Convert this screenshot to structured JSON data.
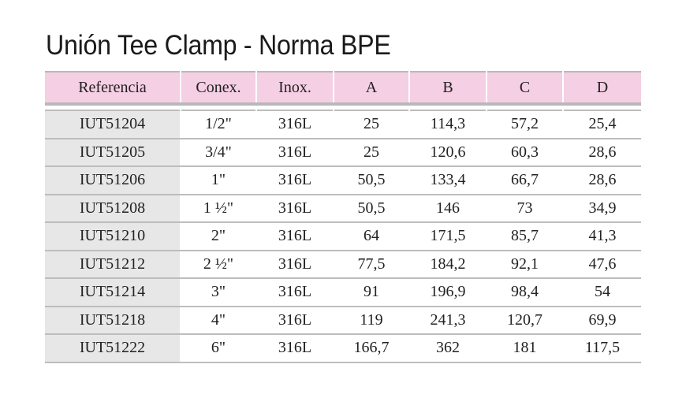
{
  "title": "Unión Tee Clamp - Norma BPE",
  "table": {
    "headers": [
      "Referencia",
      "Conex.",
      "Inox.",
      "A",
      "B",
      "C",
      "D"
    ],
    "rows": [
      [
        "IUT51204",
        "1/2\"",
        "316L",
        "25",
        "114,3",
        "57,2",
        "25,4"
      ],
      [
        "IUT51205",
        "3/4\"",
        "316L",
        "25",
        "120,6",
        "60,3",
        "28,6"
      ],
      [
        "IUT51206",
        "1\"",
        "316L",
        "50,5",
        "133,4",
        "66,7",
        "28,6"
      ],
      [
        "IUT51208",
        "1 ½\"",
        "316L",
        "50,5",
        "146",
        "73",
        "34,9"
      ],
      [
        "IUT51210",
        "2\"",
        "316L",
        "64",
        "171,5",
        "85,7",
        "41,3"
      ],
      [
        "IUT51212",
        "2 ½\"",
        "316L",
        "77,5",
        "184,2",
        "92,1",
        "47,6"
      ],
      [
        "IUT51214",
        "3\"",
        "316L",
        "91",
        "196,9",
        "98,4",
        "54"
      ],
      [
        "IUT51218",
        "4\"",
        "316L",
        "119",
        "241,3",
        "120,7",
        "69,9"
      ],
      [
        "IUT51222",
        "6\"",
        "316L",
        "166,7",
        "362",
        "181",
        "117,5"
      ]
    ]
  },
  "colors": {
    "header_background": "#f5cfe4",
    "reference_column_background": "#e7e7e7",
    "rule_color": "#bdbdbd"
  }
}
